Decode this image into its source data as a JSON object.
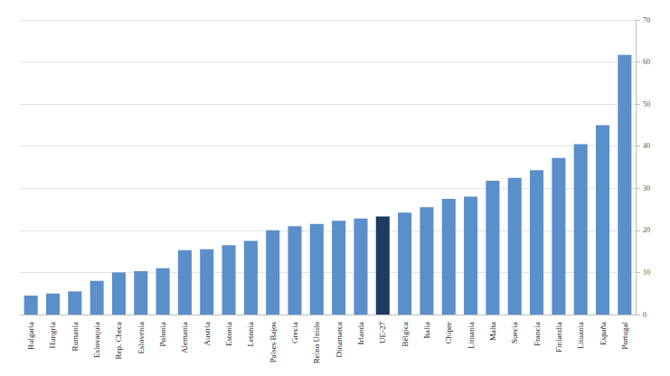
{
  "chart_data": {
    "type": "bar",
    "categories": [
      "Bulgaria",
      "Hungría",
      "Rumanía",
      "Eslovaquia",
      "Rep. Checa",
      "Eslovenia",
      "Polonia",
      "Alemania",
      "Austria",
      "Estonia",
      "Letonia",
      "Países Bajos",
      "Grecia",
      "Reino Unido",
      "Dinamarca",
      "Irlanda",
      "UE-27",
      "Bélgica",
      "Italia",
      "Chipre",
      "Lituania",
      "Malta",
      "Suecia",
      "Francia",
      "Finlandia",
      "Lituania",
      "España",
      "Portugal"
    ],
    "values": [
      4.5,
      5,
      5.5,
      8,
      10,
      10.3,
      11,
      15.3,
      15.5,
      16.5,
      17.5,
      20,
      21,
      21.5,
      22.3,
      22.8,
      23.3,
      24.2,
      25.5,
      27.5,
      28,
      31.8,
      32.5,
      34.3,
      37.2,
      40.5,
      45,
      61.7
    ],
    "colors": [
      "#5b8fc9",
      "#5b8fc9",
      "#5b8fc9",
      "#5b8fc9",
      "#5b8fc9",
      "#5b8fc9",
      "#5b8fc9",
      "#5b8fc9",
      "#5b8fc9",
      "#5b8fc9",
      "#5b8fc9",
      "#5b8fc9",
      "#5b8fc9",
      "#5b8fc9",
      "#5b8fc9",
      "#5b8fc9",
      "#1f3a60",
      "#5b8fc9",
      "#5b8fc9",
      "#5b8fc9",
      "#5b8fc9",
      "#5b8fc9",
      "#5b8fc9",
      "#5b8fc9",
      "#5b8fc9",
      "#5b8fc9",
      "#5b8fc9",
      "#5b8fc9"
    ],
    "ylim": [
      0,
      70
    ],
    "yticks": [
      0,
      10,
      20,
      30,
      40,
      50,
      60,
      70
    ],
    "grid": true
  }
}
